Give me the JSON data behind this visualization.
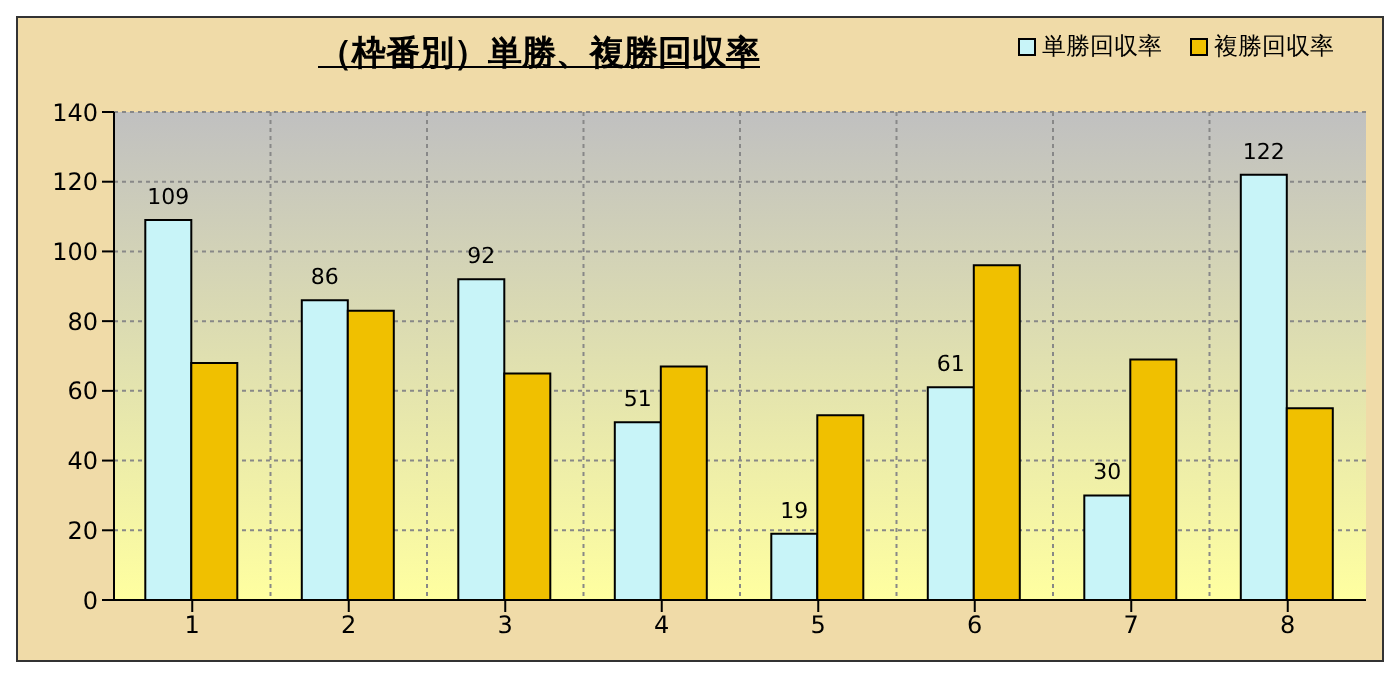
{
  "chart_data": {
    "type": "bar",
    "title": "（枠番別）単勝、複勝回収率",
    "categories": [
      "1",
      "2",
      "3",
      "4",
      "5",
      "6",
      "7",
      "8"
    ],
    "series": [
      {
        "name": "単勝回収率",
        "color": "#c8f4f8",
        "values": [
          109,
          86,
          92,
          51,
          19,
          61,
          30,
          122
        ],
        "value_labels": [
          "109",
          "86",
          "92",
          "51",
          "19",
          "61",
          "30",
          "122"
        ]
      },
      {
        "name": "複勝回収率",
        "color": "#f0c000",
        "values": [
          68,
          83,
          65,
          67,
          53,
          96,
          69,
          55
        ]
      }
    ],
    "ylim": [
      0,
      140
    ],
    "yticks": [
      0,
      20,
      40,
      60,
      80,
      100,
      120,
      140
    ],
    "grid": true,
    "legend": "top right"
  }
}
